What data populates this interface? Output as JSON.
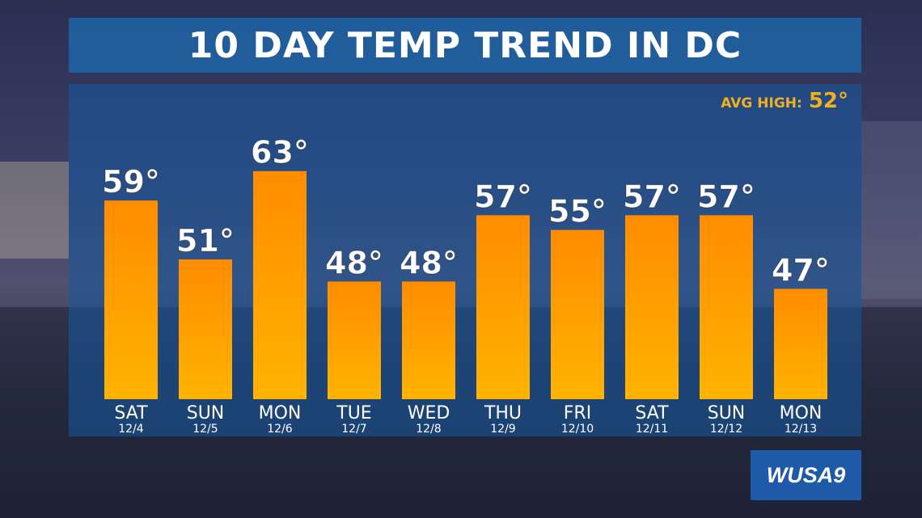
{
  "title": "10 DAY TEMP TREND IN DC",
  "avg_high": {
    "label": "AVG HIGH:",
    "value": "52°"
  },
  "logo": "WUSA9",
  "colors": {
    "bar_top": "#ff8c00",
    "bar_bottom": "#ffb300",
    "title_bg": "#1e66aa",
    "avg_text": "#f2b01e"
  },
  "chart_data": {
    "type": "bar",
    "title": "10 DAY TEMP TREND IN DC",
    "categories": [
      "SAT",
      "SUN",
      "MON",
      "TUE",
      "WED",
      "THU",
      "FRI",
      "SAT",
      "SUN",
      "MON"
    ],
    "dates": [
      "12/4",
      "12/5",
      "12/6",
      "12/7",
      "12/8",
      "12/9",
      "12/10",
      "12/11",
      "12/12",
      "12/13"
    ],
    "values": [
      59,
      51,
      63,
      48,
      48,
      57,
      55,
      57,
      57,
      47
    ],
    "value_labels": [
      "59°",
      "51°",
      "63°",
      "48°",
      "48°",
      "57°",
      "55°",
      "57°",
      "57°",
      "47°"
    ],
    "ylim": [
      32,
      70
    ]
  }
}
